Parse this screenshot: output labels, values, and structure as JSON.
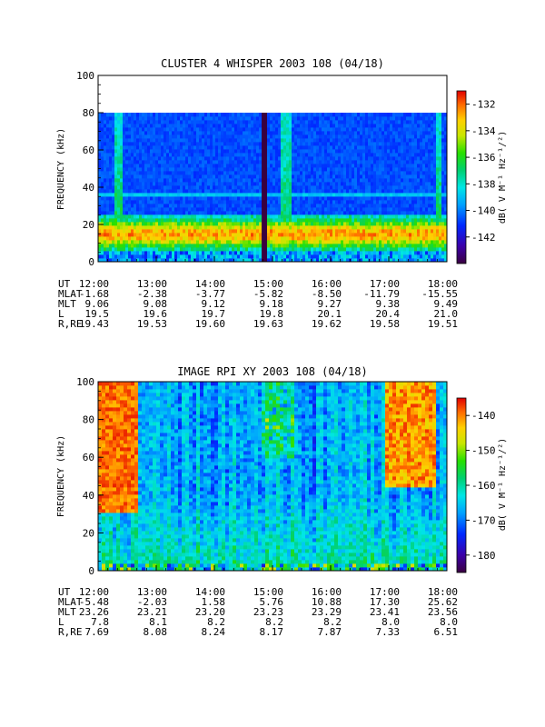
{
  "panels": [
    {
      "id": "whisper",
      "title": "CLUSTER 4 WHISPER 2003 108 (04/18)",
      "ylabel": "FREQUENCY (kHz)",
      "colorbar_label": "dB( V M⁻¹ Hz⁻¹/²)",
      "ephemeris": [
        {
          "name": "UT",
          "values": [
            "12:00",
            "13:00",
            "14:00",
            "15:00",
            "16:00",
            "17:00",
            "18:00"
          ]
        },
        {
          "name": "MLAT",
          "values": [
            "-1.68",
            "-2.38",
            "-3.77",
            "-5.82",
            "-8.50",
            "-11.79",
            "-15.55"
          ]
        },
        {
          "name": "MLT",
          "values": [
            "9.06",
            "9.08",
            "9.12",
            "9.18",
            "9.27",
            "9.38",
            "9.49"
          ]
        },
        {
          "name": "L",
          "values": [
            "19.5",
            "19.6",
            "19.7",
            "19.8",
            "20.1",
            "20.4",
            "21.0"
          ]
        },
        {
          "name": "R,RE",
          "values": [
            "19.43",
            "19.53",
            "19.60",
            "19.63",
            "19.62",
            "19.58",
            "19.51"
          ]
        }
      ]
    },
    {
      "id": "rpi",
      "title": "IMAGE RPI XY 2003 108 (04/18)",
      "ylabel": "FREQUENCY (kHz)",
      "colorbar_label": "dB( V M⁻¹ Hz⁻¹/²)",
      "ephemeris": [
        {
          "name": "UT",
          "values": [
            "12:00",
            "13:00",
            "14:00",
            "15:00",
            "16:00",
            "17:00",
            "18:00"
          ]
        },
        {
          "name": "MLAT",
          "values": [
            "-5.48",
            "-2.03",
            "1.58",
            "5.76",
            "10.88",
            "17.30",
            "25.62"
          ]
        },
        {
          "name": "MLT",
          "values": [
            "23.26",
            "23.21",
            "23.20",
            "23.23",
            "23.29",
            "23.41",
            "23.56"
          ]
        },
        {
          "name": "L",
          "values": [
            "7.8",
            "8.1",
            "8.2",
            "8.2",
            "8.2",
            "8.0",
            "8.0"
          ]
        },
        {
          "name": "R,RE",
          "values": [
            "7.69",
            "8.08",
            "8.24",
            "8.17",
            "7.87",
            "7.33",
            "6.51"
          ]
        }
      ]
    }
  ],
  "chart_data": [
    {
      "type": "heatmap",
      "title": "CLUSTER 4 WHISPER 2003 108 (04/18)",
      "xlabel": "",
      "ylabel": "FREQUENCY (kHz)",
      "x_ticks": [
        "12:00",
        "13:00",
        "14:00",
        "15:00",
        "16:00",
        "17:00",
        "18:00"
      ],
      "xlim_hours_ut": [
        12,
        18
      ],
      "ylim": [
        0,
        100
      ],
      "y_ticks": [
        0,
        20,
        40,
        60,
        80,
        100
      ],
      "data_frequency_range_khz": [
        0,
        80
      ],
      "colorbar": {
        "label": "dB( V M⁻¹ Hz⁻¹/²)",
        "range": [
          -144,
          -131
        ],
        "ticks": [
          -132,
          -134,
          -136,
          -138,
          -140,
          -142
        ]
      },
      "features": [
        {
          "description": "intense emission band",
          "freq_khz": [
            5,
            25
          ],
          "time": "12:00-18:00",
          "level_db": -137
        },
        {
          "description": "data gap (black)",
          "time": "14:50-14:54"
        },
        {
          "description": "broadband burst",
          "time": "15:10-15:20",
          "freq_khz": [
            30,
            80
          ]
        }
      ]
    },
    {
      "type": "heatmap",
      "title": "IMAGE RPI XY 2003 108 (04/18)",
      "xlabel": "",
      "ylabel": "FREQUENCY (kHz)",
      "x_ticks": [
        "12:00",
        "13:00",
        "14:00",
        "15:00",
        "16:00",
        "17:00",
        "18:00"
      ],
      "xlim_hours_ut": [
        12,
        18
      ],
      "ylim": [
        0,
        100
      ],
      "y_ticks": [
        0,
        20,
        40,
        60,
        80,
        100
      ],
      "colorbar": {
        "label": "dB( V M⁻¹ Hz⁻¹/²)",
        "range": [
          -185,
          -135
        ],
        "ticks": [
          -140,
          -150,
          -160,
          -170,
          -180
        ]
      },
      "features": [
        {
          "description": "intense emission (red)",
          "time": "12:00-12:40",
          "freq_khz": [
            40,
            100
          ]
        },
        {
          "description": "intense emission (red)",
          "time": "17:00-17:45",
          "freq_khz": [
            50,
            100
          ]
        },
        {
          "description": "background green/cyan band",
          "freq_khz": [
            5,
            40
          ]
        }
      ]
    }
  ],
  "colors": {
    "colormap": [
      "#3a0040",
      "#3b00a8",
      "#0028ff",
      "#00a0ff",
      "#00e6e6",
      "#00d070",
      "#28e000",
      "#c8e600",
      "#ffd000",
      "#ff6a00",
      "#e00000"
    ]
  }
}
